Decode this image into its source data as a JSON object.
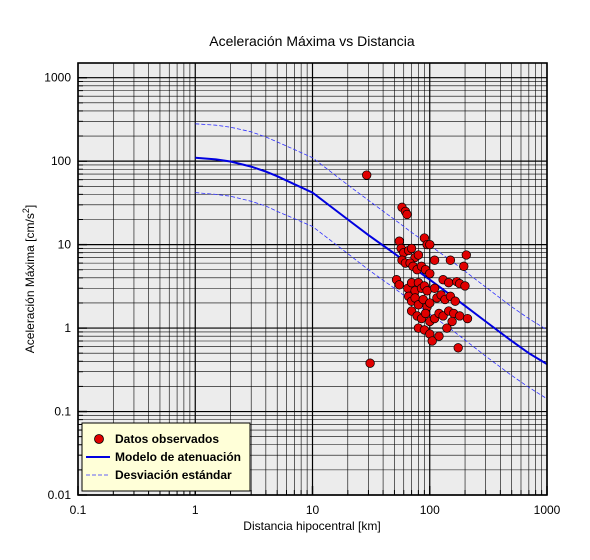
{
  "chart_data": {
    "type": "scatter",
    "title": "Aceleración Máxima vs Distancia",
    "xlabel": "Distancia hipocentral [km]",
    "ylabel": {
      "main": "Aceleración Máxima [cm/s",
      "sup": "2",
      "end": "]"
    },
    "x_scale": "log",
    "y_scale": "log",
    "xlim": [
      0.1,
      1000
    ],
    "ylim": [
      0.01,
      1500
    ],
    "xticks": [
      {
        "value": 0.1,
        "label": "0.1"
      },
      {
        "value": 1,
        "label": "1"
      },
      {
        "value": 10,
        "label": "10"
      },
      {
        "value": 100,
        "label": "100"
      },
      {
        "value": 1000,
        "label": "1000"
      }
    ],
    "yticks": [
      {
        "value": 0.01,
        "label": "0.01"
      },
      {
        "value": 0.1,
        "label": "0.1"
      },
      {
        "value": 1,
        "label": "1"
      },
      {
        "value": 10,
        "label": "10"
      },
      {
        "value": 100,
        "label": "100"
      },
      {
        "value": 1000,
        "label": "1000"
      }
    ],
    "grid": true,
    "legend_position": "bottom-left",
    "colors": {
      "plot_background": "#ececec",
      "legend_background": "#ffffd8",
      "points": "#e00000",
      "model": "#0000e0",
      "std": "#3030ff"
    },
    "series": [
      {
        "name": "Datos observados",
        "kind": "points",
        "points": [
          [
            29,
            68
          ],
          [
            31,
            0.38
          ],
          [
            58,
            28
          ],
          [
            62,
            25
          ],
          [
            64,
            23
          ],
          [
            55,
            11
          ],
          [
            57,
            9
          ],
          [
            60,
            8
          ],
          [
            66,
            8.5
          ],
          [
            70,
            9
          ],
          [
            75,
            7
          ],
          [
            80,
            7.5
          ],
          [
            90,
            12
          ],
          [
            95,
            10
          ],
          [
            100,
            10
          ],
          [
            58,
            6.5
          ],
          [
            62,
            6
          ],
          [
            68,
            6
          ],
          [
            72,
            5.5
          ],
          [
            78,
            5
          ],
          [
            85,
            5.5
          ],
          [
            92,
            5
          ],
          [
            100,
            4.5
          ],
          [
            110,
            6.5
          ],
          [
            150,
            6.5
          ],
          [
            205,
            7.5
          ],
          [
            195,
            5.5
          ],
          [
            52,
            3.8
          ],
          [
            55,
            3.3
          ],
          [
            65,
            3
          ],
          [
            70,
            3.5
          ],
          [
            75,
            2.8
          ],
          [
            80,
            3.5
          ],
          [
            85,
            3
          ],
          [
            90,
            3.2
          ],
          [
            95,
            2.8
          ],
          [
            110,
            3
          ],
          [
            130,
            3.8
          ],
          [
            145,
            3.5
          ],
          [
            170,
            3.6
          ],
          [
            180,
            3.4
          ],
          [
            200,
            3.2
          ],
          [
            66,
            2.4
          ],
          [
            70,
            2.1
          ],
          [
            75,
            2.3
          ],
          [
            80,
            1.9
          ],
          [
            88,
            2.2
          ],
          [
            95,
            1.8
          ],
          [
            100,
            2.0
          ],
          [
            115,
            2.3
          ],
          [
            125,
            2.5
          ],
          [
            135,
            2.2
          ],
          [
            150,
            2.4
          ],
          [
            165,
            2.1
          ],
          [
            70,
            1.6
          ],
          [
            78,
            1.4
          ],
          [
            85,
            1.3
          ],
          [
            92,
            1.5
          ],
          [
            100,
            1.2
          ],
          [
            110,
            1.3
          ],
          [
            120,
            1.5
          ],
          [
            130,
            1.4
          ],
          [
            145,
            1.6
          ],
          [
            160,
            1.5
          ],
          [
            180,
            1.4
          ],
          [
            210,
            1.3
          ],
          [
            80,
            1.0
          ],
          [
            90,
            0.95
          ],
          [
            100,
            0.85
          ],
          [
            105,
            0.7
          ],
          [
            120,
            0.8
          ],
          [
            140,
            1.0
          ],
          [
            155,
            1.2
          ],
          [
            175,
            0.58
          ]
        ]
      },
      {
        "name": "Modelo de atenuación",
        "kind": "line",
        "style": "solid",
        "x": [
          1,
          1.5,
          2,
          3,
          4,
          5,
          7,
          10,
          20,
          30,
          50,
          70,
          100,
          150,
          200,
          300,
          500,
          700,
          1000
        ],
        "y": [
          110,
          105,
          99,
          86,
          75,
          66,
          53,
          42,
          20,
          13,
          7.8,
          5.5,
          3.8,
          2.5,
          1.85,
          1.2,
          0.7,
          0.5,
          0.37
        ]
      },
      {
        "name": "Desviación estándar",
        "kind": "line",
        "style": "dashed",
        "x": [
          1,
          1.5,
          2,
          3,
          4,
          5,
          7,
          10,
          20,
          30,
          50,
          70,
          100,
          150,
          200,
          300,
          500,
          700,
          1000
        ],
        "y": [
          280,
          270,
          255,
          225,
          195,
          170,
          138,
          110,
          52,
          34,
          20,
          14,
          9.8,
          6.5,
          4.8,
          3.1,
          1.8,
          1.3,
          0.95
        ]
      },
      {
        "kind": "line",
        "style": "dashed",
        "x": [
          1,
          1.5,
          2,
          3,
          4,
          5,
          7,
          10,
          20,
          30,
          50,
          70,
          100,
          150,
          200,
          300,
          500,
          700,
          1000
        ],
        "y": [
          42,
          40,
          38,
          33,
          29,
          25,
          20.5,
          16.5,
          7.8,
          5.0,
          3.0,
          2.1,
          1.48,
          0.98,
          0.72,
          0.46,
          0.27,
          0.195,
          0.142
        ]
      }
    ]
  }
}
